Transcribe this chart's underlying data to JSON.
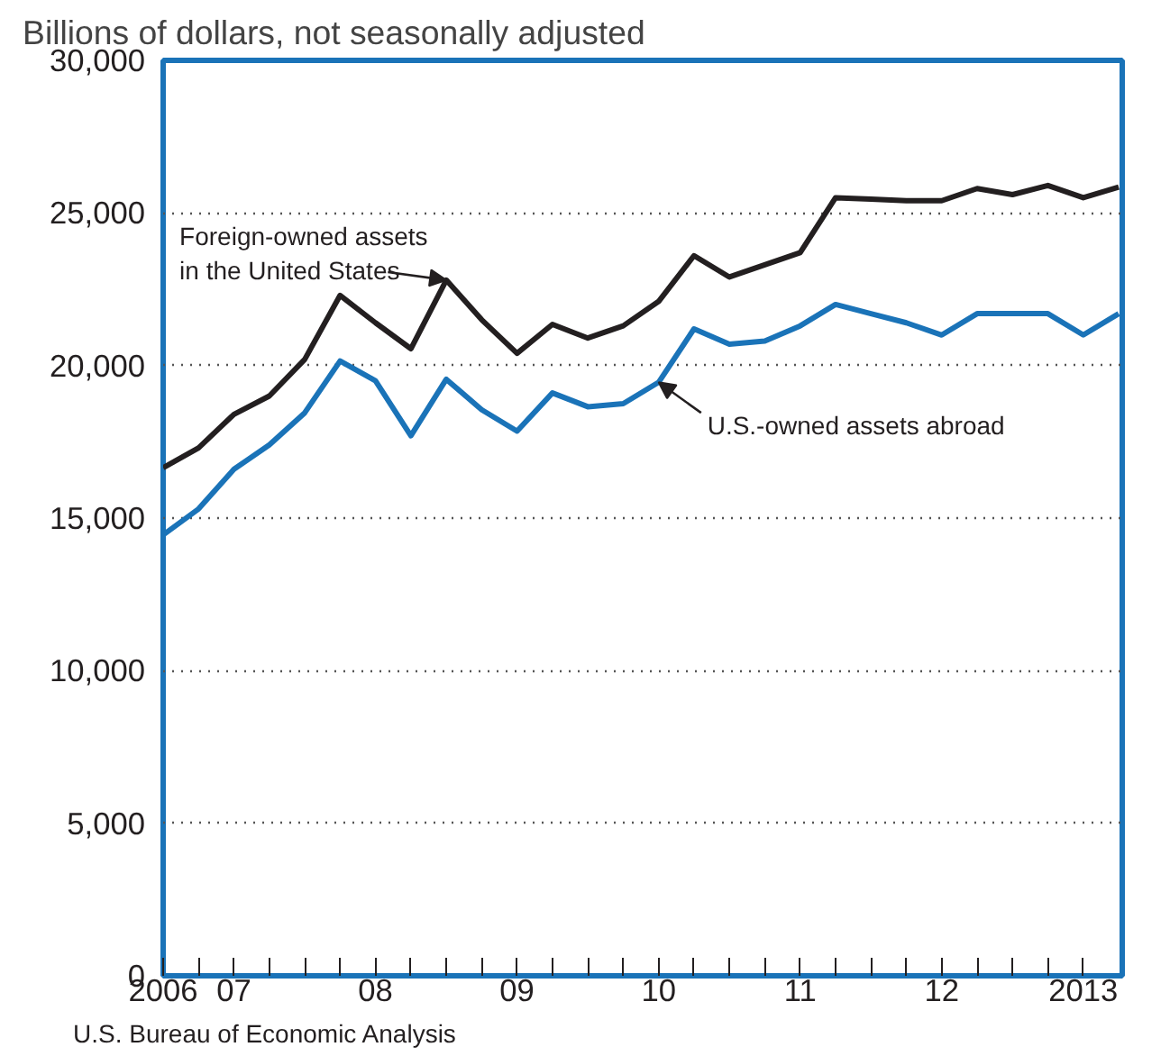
{
  "chart_data": {
    "type": "line",
    "title": "Billions of dollars, not seasonally adjusted",
    "categories": [
      "2006",
      null,
      "07",
      null,
      null,
      null,
      "08",
      null,
      null,
      null,
      "09",
      null,
      null,
      null,
      "10",
      null,
      null,
      null,
      "11",
      null,
      null,
      null,
      "12",
      null,
      null,
      null,
      "2013",
      null
    ],
    "series": [
      {
        "name": "Foreign-owned assets in the United States",
        "color": "#231f20",
        "values": [
          16650,
          17300,
          18400,
          19000,
          20200,
          22300,
          21400,
          20550,
          22800,
          21500,
          20400,
          21350,
          20900,
          21300,
          22100,
          23600,
          22900,
          23300,
          23700,
          25500,
          25450,
          25400,
          25400,
          25800,
          25600,
          25900,
          25500,
          25850
        ]
      },
      {
        "name": "U.S.-owned assets abroad",
        "color": "#1a73b8",
        "values": [
          14450,
          15300,
          16600,
          17400,
          18450,
          20150,
          19500,
          17700,
          19550,
          18550,
          17850,
          19100,
          18650,
          18750,
          19450,
          21200,
          20700,
          20800,
          21300,
          22000,
          21700,
          21400,
          21000,
          21700,
          21700,
          21700,
          21000,
          21700
        ]
      }
    ],
    "annotations": [
      "U.S. Bureau of Economic Analysis"
    ],
    "ylim": [
      0,
      30000
    ],
    "yticks": [
      0,
      {
        "value": 5000,
        "label": "5,000"
      },
      {
        "value": 10000,
        "label": "10,000"
      },
      {
        "value": 15000,
        "label": "15,000"
      },
      {
        "value": 20000,
        "label": "20,000"
      },
      {
        "value": 25000,
        "label": "25,000"
      },
      {
        "value": 30000,
        "label": "30,000"
      }
    ],
    "grid": "y",
    "legend": false,
    "marker": "none",
    "line_style": "solid"
  }
}
